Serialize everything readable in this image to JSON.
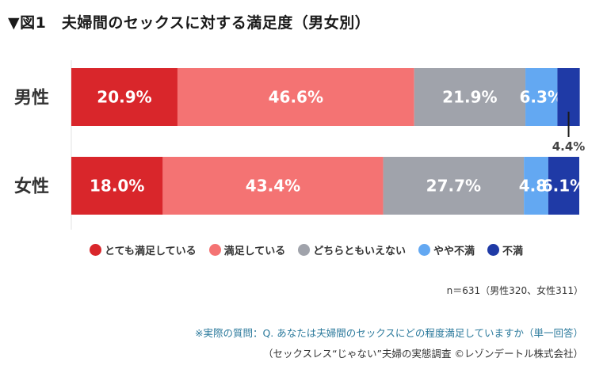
{
  "title": "▼図1　夫婦間のセックスに対する満足度（男女別）",
  "chart_data": {
    "type": "stacked-bar-horizontal",
    "categories": [
      "男性",
      "女性"
    ],
    "series": [
      {
        "name": "とても満足している",
        "color": "#d9262b",
        "values": [
          20.9,
          18.0
        ],
        "labels": [
          "20.9%",
          "18.0%"
        ]
      },
      {
        "name": "満足している",
        "color": "#f47373",
        "values": [
          46.6,
          43.4
        ],
        "labels": [
          "46.6%",
          "43.4%"
        ]
      },
      {
        "name": "どちらともいえない",
        "color": "#a0a3ab",
        "values": [
          21.9,
          27.7
        ],
        "labels": [
          "21.9%",
          "27.7%"
        ]
      },
      {
        "name": "やや不満",
        "color": "#63a8f2",
        "values": [
          6.3,
          4.8
        ],
        "labels": [
          "6.3%",
          "4.8%"
        ]
      },
      {
        "name": "不満",
        "color": "#1f3aa6",
        "values": [
          4.4,
          6.1
        ],
        "labels": [
          "4.4%",
          "6.1%"
        ]
      }
    ],
    "xlim": [
      0,
      100
    ]
  },
  "sample_note": "n＝631（男性320、女性311）",
  "question_note": "※実際の質問：Q. あなたは夫婦間のセックスにどの程度満足していますか（単一回答）",
  "source_note": "（セックスレス“じゃない”夫婦の実態調査 ©レゾンデートル株式会社）"
}
